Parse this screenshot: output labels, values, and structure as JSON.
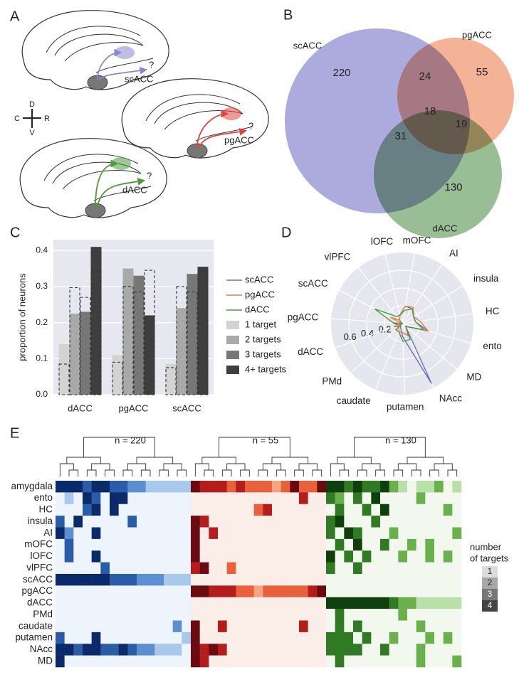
{
  "panel_letters": [
    "A",
    "B",
    "C",
    "D",
    "E"
  ],
  "diagram": {
    "brains": [
      {
        "label": "scACC",
        "query": "?",
        "color": "#8a87d0"
      },
      {
        "label": "pgACC",
        "query": "?",
        "color": "#e0453a"
      },
      {
        "label": "dACC",
        "query": "?",
        "color": "#4e9a3a"
      }
    ],
    "compass": {
      "up": "D",
      "down": "V",
      "left": "C",
      "right": "R"
    }
  },
  "chart_data": [
    {
      "type": "venn",
      "sets": [
        {
          "name": "scACC",
          "color": "#8a87d0"
        },
        {
          "name": "pgACC",
          "color": "#f0936a"
        },
        {
          "name": "dACC",
          "color": "#6ea36a"
        }
      ],
      "regions": [
        {
          "sets": [
            0
          ],
          "value": 220
        },
        {
          "sets": [
            1
          ],
          "value": 55
        },
        {
          "sets": [
            2
          ],
          "value": 130
        },
        {
          "sets": [
            0,
            1
          ],
          "value": 24
        },
        {
          "sets": [
            0,
            2
          ],
          "value": 31
        },
        {
          "sets": [
            1,
            2
          ],
          "value": 19
        },
        {
          "sets": [
            0,
            1,
            2
          ],
          "value": 18
        }
      ]
    },
    {
      "type": "bar",
      "ylabel": "proportion of neurons",
      "categories": [
        "dACC",
        "pgACC",
        "scACC"
      ],
      "series": [
        {
          "name": "1 target",
          "color": "#d3d3d3",
          "values": [
            0.14,
            0.11,
            0.085
          ],
          "expected": [
            0.085,
            0.09,
            0.075
          ]
        },
        {
          "name": "2 targets",
          "color": "#a9a9a9",
          "values": [
            0.225,
            0.35,
            0.24
          ],
          "expected": [
            0.297,
            0.3,
            0.3
          ]
        },
        {
          "name": "3 targets",
          "color": "#777777",
          "values": [
            0.23,
            0.33,
            0.335
          ],
          "expected": [
            0.27,
            0.285,
            0.285
          ]
        },
        {
          "name": "4+ targets",
          "color": "#3e3e3e",
          "values": [
            0.41,
            0.22,
            0.355
          ],
          "expected": [
            0.345,
            0.345,
            0.345
          ]
        }
      ],
      "ylim": [
        0,
        0.43
      ],
      "yticks": [
        {
          "value": 0,
          "label": "0.0"
        },
        0.1,
        0.2,
        0.3,
        0.4
      ],
      "grid": true
    },
    {
      "type": "radar",
      "axes": [
        "mOFC",
        "AI",
        "insula",
        "HC",
        "ento",
        "MD",
        "NAcc",
        "putamen",
        "caudate",
        "PMd",
        "dACC",
        "pgACC",
        "scACC",
        "vlPFC",
        "lOFC"
      ],
      "series": [
        {
          "name": "scACC",
          "color": "#6f6cc4",
          "values": [
            0.2,
            0.2,
            0.15,
            0.15,
            0.3,
            0.05,
            0.75,
            0.15,
            0.05,
            0.02,
            0.05,
            0.1,
            0,
            0.05,
            0.1
          ]
        },
        {
          "name": "pgACC",
          "color": "#ea7a4a",
          "values": [
            0.2,
            0.22,
            0.15,
            0.2,
            0.3,
            0.05,
            0.15,
            0.1,
            0.1,
            0.05,
            0.1,
            0,
            0.15,
            0.05,
            0.1
          ]
        },
        {
          "name": "dACC",
          "color": "#4e9a3a",
          "values": [
            0.15,
            0.2,
            0.15,
            0.15,
            0.25,
            0.05,
            0.2,
            0.2,
            0.1,
            0.1,
            0,
            0.1,
            0.35,
            0.1,
            0.1
          ]
        }
      ],
      "rlim": [
        0,
        0.8
      ],
      "rticks": [
        0.2,
        0.4,
        0.6
      ]
    },
    {
      "type": "heatmap",
      "groups": [
        {
          "label": "n = 220",
          "columns": 15,
          "colors": [
            "#eef4fb",
            "#a8c8ec",
            "#5b8fd0",
            "#2a5ca8",
            "#0b2a6a"
          ]
        },
        {
          "label": "n = 55",
          "columns": 15,
          "colors": [
            "#fbeee8",
            "#f4a582",
            "#e8603c",
            "#b51c1c",
            "#6b0a10"
          ]
        },
        {
          "label": "n = 130",
          "columns": 15,
          "colors": [
            "#f2f8ee",
            "#b8e0a8",
            "#6ab04c",
            "#2f7a22",
            "#0e3f0c"
          ]
        }
      ],
      "rows": [
        "amygdala",
        "ento",
        "HC",
        "insula",
        "AI",
        "mOFC",
        "lOFC",
        "vlPFC",
        "scACC",
        "pgACC",
        "dACC",
        "PMd",
        "caudate",
        "putamen",
        "NAcc",
        "MD"
      ],
      "values": [
        [
          4,
          4,
          4,
          3,
          4,
          4,
          3,
          3,
          2,
          2,
          1,
          1,
          1,
          1,
          1,
          4,
          3,
          3,
          3,
          2,
          3,
          2,
          2,
          2,
          1,
          2,
          4,
          2,
          2,
          4,
          4,
          4,
          3,
          4,
          3,
          3,
          4,
          2,
          1,
          0,
          1,
          1,
          2,
          0,
          1
        ],
        [
          0,
          1,
          0,
          4,
          3,
          0,
          4,
          4,
          0,
          0,
          0,
          0,
          0,
          0,
          0,
          0,
          0,
          0,
          0,
          0,
          0,
          0,
          0,
          0,
          0,
          0,
          0,
          3,
          0,
          0,
          3,
          2,
          0,
          3,
          0,
          4,
          0,
          0,
          0,
          0,
          2,
          0,
          0,
          0,
          0
        ],
        [
          0,
          0,
          0,
          3,
          4,
          0,
          4,
          0,
          0,
          0,
          0,
          0,
          0,
          0,
          0,
          0,
          0,
          0,
          0,
          0,
          0,
          0,
          2,
          3,
          0,
          0,
          0,
          0,
          0,
          0,
          0,
          3,
          0,
          0,
          3,
          0,
          4,
          0,
          0,
          0,
          0,
          0,
          0,
          2,
          0
        ],
        [
          3,
          0,
          4,
          0,
          0,
          0,
          0,
          0,
          3,
          0,
          0,
          0,
          0,
          0,
          0,
          4,
          3,
          0,
          0,
          0,
          0,
          0,
          0,
          0,
          0,
          0,
          0,
          0,
          0,
          0,
          3,
          4,
          0,
          0,
          0,
          3,
          0,
          0,
          0,
          0,
          0,
          0,
          0,
          0,
          0
        ],
        [
          4,
          2,
          0,
          0,
          4,
          0,
          0,
          0,
          0,
          0,
          0,
          0,
          0,
          0,
          0,
          4,
          0,
          3,
          0,
          0,
          0,
          0,
          0,
          0,
          0,
          0,
          0,
          0,
          0,
          0,
          3,
          0,
          4,
          3,
          0,
          0,
          0,
          2,
          0,
          0,
          0,
          0,
          0,
          0,
          2
        ],
        [
          0,
          3,
          0,
          0,
          0,
          0,
          0,
          0,
          0,
          0,
          0,
          0,
          0,
          0,
          0,
          4,
          0,
          0,
          0,
          0,
          0,
          0,
          0,
          0,
          0,
          0,
          0,
          0,
          0,
          0,
          0,
          3,
          0,
          4,
          0,
          0,
          3,
          0,
          0,
          2,
          0,
          2,
          0,
          0,
          0
        ],
        [
          0,
          3,
          0,
          0,
          4,
          0,
          0,
          0,
          0,
          0,
          0,
          0,
          0,
          0,
          0,
          4,
          0,
          0,
          0,
          0,
          0,
          0,
          0,
          0,
          0,
          0,
          0,
          0,
          0,
          0,
          4,
          0,
          3,
          0,
          3,
          0,
          0,
          0,
          2,
          0,
          0,
          2,
          0,
          2,
          0
        ],
        [
          0,
          0,
          0,
          0,
          0,
          3,
          0,
          0,
          0,
          0,
          0,
          0,
          0,
          0,
          0,
          3,
          4,
          0,
          0,
          2,
          0,
          0,
          0,
          0,
          0,
          0,
          0,
          0,
          0,
          0,
          3,
          0,
          0,
          3,
          0,
          0,
          0,
          0,
          0,
          0,
          0,
          0,
          0,
          0,
          0
        ],
        [
          4,
          4,
          4,
          4,
          4,
          4,
          3,
          3,
          3,
          2,
          2,
          2,
          1,
          1,
          1,
          0,
          0,
          0,
          0,
          0,
          0,
          0,
          0,
          0,
          0,
          0,
          0,
          0,
          0,
          0,
          0,
          0,
          0,
          0,
          0,
          0,
          0,
          0,
          0,
          0,
          0,
          0,
          0,
          0,
          0
        ],
        [
          0,
          0,
          0,
          0,
          0,
          0,
          0,
          0,
          0,
          0,
          0,
          0,
          0,
          0,
          0,
          4,
          4,
          3,
          3,
          3,
          2,
          2,
          1,
          2,
          2,
          2,
          2,
          2,
          3,
          4,
          0,
          0,
          0,
          0,
          0,
          0,
          0,
          0,
          0,
          0,
          0,
          0,
          0,
          0,
          0
        ],
        [
          0,
          0,
          0,
          0,
          0,
          0,
          0,
          0,
          0,
          0,
          0,
          0,
          0,
          0,
          0,
          0,
          0,
          0,
          0,
          0,
          0,
          0,
          0,
          0,
          0,
          0,
          0,
          0,
          0,
          0,
          4,
          4,
          4,
          4,
          4,
          4,
          4,
          3,
          2,
          2,
          1,
          1,
          1,
          1,
          1
        ],
        [
          0,
          0,
          0,
          0,
          0,
          0,
          0,
          0,
          0,
          0,
          0,
          0,
          0,
          0,
          0,
          0,
          0,
          0,
          0,
          0,
          0,
          0,
          0,
          0,
          0,
          0,
          0,
          0,
          0,
          0,
          0,
          3,
          0,
          0,
          0,
          0,
          0,
          0,
          2,
          0,
          0,
          0,
          0,
          0,
          0
        ],
        [
          0,
          0,
          0,
          0,
          0,
          0,
          0,
          0,
          0,
          0,
          0,
          0,
          0,
          2,
          0,
          4,
          0,
          0,
          3,
          0,
          0,
          0,
          0,
          0,
          0,
          0,
          0,
          3,
          0,
          0,
          0,
          3,
          0,
          3,
          0,
          0,
          0,
          0,
          0,
          0,
          2,
          0,
          0,
          0,
          0
        ],
        [
          3,
          0,
          0,
          0,
          4,
          0,
          0,
          0,
          0,
          0,
          0,
          0,
          0,
          0,
          1,
          4,
          0,
          0,
          0,
          0,
          0,
          0,
          0,
          0,
          0,
          0,
          0,
          0,
          0,
          0,
          3,
          3,
          3,
          0,
          3,
          0,
          0,
          2,
          0,
          0,
          0,
          2,
          0,
          2,
          0
        ],
        [
          4,
          4,
          3,
          4,
          4,
          3,
          3,
          4,
          3,
          2,
          2,
          1,
          1,
          1,
          0,
          4,
          3,
          4,
          3,
          0,
          0,
          0,
          0,
          0,
          0,
          0,
          0,
          0,
          0,
          0,
          3,
          3,
          3,
          3,
          0,
          0,
          3,
          0,
          0,
          0,
          2,
          0,
          0,
          0,
          0
        ],
        [
          4,
          0,
          0,
          0,
          0,
          0,
          0,
          0,
          0,
          0,
          0,
          0,
          0,
          0,
          0,
          4,
          3,
          0,
          0,
          0,
          0,
          0,
          0,
          0,
          0,
          0,
          0,
          0,
          0,
          0,
          0,
          3,
          0,
          0,
          0,
          0,
          0,
          0,
          0,
          0,
          2,
          0,
          0,
          0,
          2
        ]
      ],
      "colorbar": {
        "label": [
          "number",
          "of targets"
        ],
        "ticks": [
          1,
          2,
          3,
          4
        ],
        "colors": [
          "#dcdcdc",
          "#a8a8a8",
          "#777777",
          "#444444"
        ]
      }
    }
  ]
}
